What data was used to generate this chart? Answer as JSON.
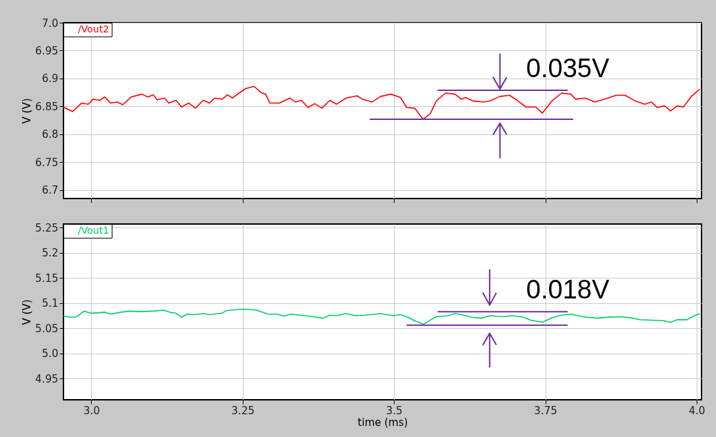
{
  "chart_data": [
    {
      "type": "line",
      "ylabel": "V (V)",
      "xlim": [
        2.954,
        4.008
      ],
      "ylim": [
        6.685,
        7.0
      ],
      "xticks": [
        3,
        3.25,
        3.5,
        3.75,
        4
      ],
      "yticks": [
        {
          "value": 6.7,
          "label": "6.7"
        },
        6.75,
        {
          "value": 6.8,
          "label": "6.8"
        },
        6.85,
        {
          "value": 6.9,
          "label": "6.9"
        },
        6.95,
        {
          "value": 7,
          "label": "7.0"
        }
      ],
      "tick_labels": "y",
      "grid": true,
      "legend": "top left",
      "annotations": [
        "0.035V"
      ],
      "series": [
        {
          "name": "/Vout2",
          "color": "#ff0000",
          "x": [
            2.954,
            2.969,
            2.984,
            2.995,
            3.003,
            3.014,
            3.022,
            3.032,
            3.043,
            3.052,
            3.066,
            3.083,
            3.094,
            3.102,
            3.109,
            3.121,
            3.128,
            3.14,
            3.149,
            3.161,
            3.172,
            3.185,
            3.195,
            3.204,
            3.216,
            3.225,
            3.233,
            3.244,
            3.255,
            3.269,
            3.28,
            3.288,
            3.295,
            3.311,
            3.328,
            3.337,
            3.347,
            3.358,
            3.369,
            3.381,
            3.394,
            3.405,
            3.421,
            3.439,
            3.448,
            3.464,
            3.478,
            3.495,
            3.511,
            3.521,
            3.534,
            3.548,
            3.56,
            3.57,
            3.585,
            3.601,
            3.611,
            3.618,
            3.63,
            3.648,
            3.659,
            3.675,
            3.691,
            3.702,
            3.718,
            3.734,
            3.745,
            3.761,
            3.777,
            3.792,
            3.8,
            3.816,
            3.832,
            3.847,
            3.867,
            3.882,
            3.898,
            3.914,
            3.925,
            3.935,
            3.947,
            3.957,
            3.968,
            3.978,
            3.992,
            4.005
          ],
          "values": [
            6.849,
            6.841,
            6.856,
            6.854,
            6.863,
            6.861,
            6.867,
            6.856,
            6.858,
            6.853,
            6.867,
            6.872,
            6.867,
            6.871,
            6.862,
            6.865,
            6.856,
            6.861,
            6.849,
            6.856,
            6.847,
            6.861,
            6.856,
            6.865,
            6.863,
            6.871,
            6.865,
            6.874,
            6.882,
            6.886,
            6.875,
            6.872,
            6.856,
            6.856,
            6.865,
            6.858,
            6.861,
            6.848,
            6.855,
            6.847,
            6.861,
            6.854,
            6.865,
            6.869,
            6.863,
            6.858,
            6.868,
            6.872,
            6.866,
            6.848,
            6.847,
            6.827,
            6.837,
            6.86,
            6.874,
            6.872,
            6.863,
            6.866,
            6.86,
            6.858,
            6.86,
            6.868,
            6.87,
            6.862,
            6.849,
            6.849,
            6.838,
            6.86,
            6.874,
            6.872,
            6.863,
            6.865,
            6.858,
            6.863,
            6.87,
            6.87,
            6.86,
            6.854,
            6.858,
            6.848,
            6.851,
            6.842,
            6.851,
            6.849,
            6.869,
            6.881
          ]
        },
        {
          "color": "#7030a0",
          "x": [
            3.572,
            3.787
          ],
          "values": [
            6.879,
            6.879
          ]
        },
        {
          "color": "#7030a0",
          "x": [
            3.46,
            3.796
          ],
          "values": [
            6.827,
            6.827
          ]
        },
        {
          "color": "#7030a0",
          "x": [
            3.675,
            3.675,
            3.664,
            3.675,
            3.686
          ],
          "values": [
            6.945,
            6.881,
            6.902,
            6.881,
            6.902
          ]
        },
        {
          "color": "#7030a0",
          "x": [
            3.675,
            3.675,
            3.664,
            3.675,
            3.686
          ],
          "values": [
            6.757,
            6.82,
            6.8,
            6.82,
            6.8
          ]
        }
      ]
    },
    {
      "type": "line",
      "xlabel": "time (ms)",
      "ylabel": "V (V)",
      "xlim": [
        2.954,
        4.008
      ],
      "ylim": [
        4.908,
        5.257
      ],
      "xticks": [
        {
          "value": 3,
          "label": "3.0"
        },
        3.25,
        3.5,
        3.75,
        {
          "value": 4,
          "label": "4.0"
        }
      ],
      "yticks": [
        4.95,
        {
          "value": 5,
          "label": "5.0"
        },
        5.05,
        {
          "value": 5.1,
          "label": "5.1"
        },
        5.15,
        {
          "value": 5.2,
          "label": "5.2"
        },
        5.25
      ],
      "grid": true,
      "legend": "top left",
      "annotations": [
        "0.018V"
      ],
      "series": [
        {
          "name": "/Vout1",
          "color": "#00cc66",
          "x": [
            2.954,
            2.967,
            2.976,
            2.988,
            2.999,
            3.014,
            3.022,
            3.032,
            3.049,
            3.064,
            3.079,
            3.102,
            3.119,
            3.132,
            3.14,
            3.149,
            3.159,
            3.17,
            3.185,
            3.197,
            3.216,
            3.223,
            3.238,
            3.254,
            3.273,
            3.292,
            3.307,
            3.318,
            3.329,
            3.345,
            3.36,
            3.383,
            3.394,
            3.405,
            3.421,
            3.437,
            3.452,
            3.478,
            3.499,
            3.511,
            3.523,
            3.534,
            3.549,
            3.561,
            3.57,
            3.589,
            3.601,
            3.612,
            3.628,
            3.644,
            3.659,
            3.679,
            3.695,
            3.714,
            3.726,
            3.745,
            3.761,
            3.777,
            3.792,
            3.812,
            3.835,
            3.855,
            3.874,
            3.89,
            3.906,
            3.925,
            3.945,
            3.957,
            3.968,
            3.984,
            3.996,
            4.005
          ],
          "values": [
            5.074,
            5.072,
            5.073,
            5.084,
            5.08,
            5.081,
            5.082,
            5.078,
            5.082,
            5.084,
            5.083,
            5.084,
            5.086,
            5.081,
            5.08,
            5.072,
            5.078,
            5.077,
            5.079,
            5.077,
            5.08,
            5.085,
            5.087,
            5.088,
            5.086,
            5.078,
            5.078,
            5.074,
            5.078,
            5.076,
            5.074,
            5.07,
            5.076,
            5.075,
            5.079,
            5.075,
            5.076,
            5.079,
            5.075,
            5.077,
            5.072,
            5.065,
            5.058,
            5.067,
            5.073,
            5.075,
            5.079,
            5.077,
            5.072,
            5.07,
            5.075,
            5.073,
            5.075,
            5.072,
            5.066,
            5.062,
            5.071,
            5.076,
            5.078,
            5.073,
            5.07,
            5.072,
            5.073,
            5.071,
            5.067,
            5.066,
            5.065,
            5.062,
            5.067,
            5.067,
            5.075,
            5.079
          ]
        },
        {
          "color": "#7030a0",
          "x": [
            3.572,
            3.787
          ],
          "values": [
            5.083,
            5.083
          ]
        },
        {
          "color": "#7030a0",
          "x": [
            3.521,
            3.787
          ],
          "values": [
            5.056,
            5.056
          ]
        },
        {
          "color": "#7030a0",
          "x": [
            3.658,
            3.658,
            3.647,
            3.658,
            3.669
          ],
          "values": [
            5.167,
            5.096,
            5.12,
            5.096,
            5.12
          ]
        },
        {
          "color": "#7030a0",
          "x": [
            3.658,
            3.658,
            3.647,
            3.658,
            3.669
          ],
          "values": [
            4.972,
            5.04,
            5.017,
            5.04,
            5.017
          ]
        }
      ]
    }
  ]
}
